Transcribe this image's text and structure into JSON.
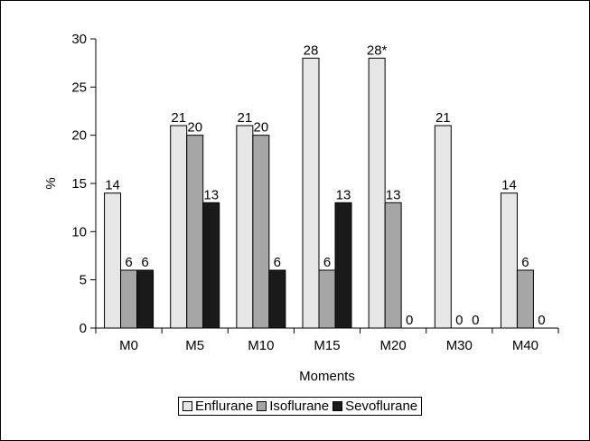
{
  "chart_data": {
    "type": "bar",
    "categories": [
      "M0",
      "M5",
      "M10",
      "M15",
      "M20",
      "M30",
      "M40"
    ],
    "series": [
      {
        "name": "Enflurane",
        "color": "#e6e6e6",
        "values": [
          14,
          21,
          21,
          28,
          28,
          21,
          14
        ],
        "labels": [
          "14",
          "21",
          "21",
          "28",
          "28*",
          "21",
          "14"
        ]
      },
      {
        "name": "Isoflurane",
        "color": "#a6a6a6",
        "values": [
          6,
          20,
          20,
          6,
          13,
          0,
          6
        ],
        "labels": [
          "6",
          "20",
          "20",
          "6",
          "13",
          "0",
          "6"
        ]
      },
      {
        "name": "Sevoflurane",
        "color": "#1a1a1a",
        "values": [
          6,
          13,
          6,
          13,
          0,
          0,
          0
        ],
        "labels": [
          "6",
          "13",
          "6",
          "13",
          "0",
          "0",
          "0"
        ]
      }
    ],
    "xlabel": "Moments",
    "ylabel": "%",
    "ylim": [
      0,
      30
    ],
    "yticks": [
      0,
      5,
      10,
      15,
      20,
      25,
      30
    ],
    "grid": false,
    "legend": "bottom"
  }
}
